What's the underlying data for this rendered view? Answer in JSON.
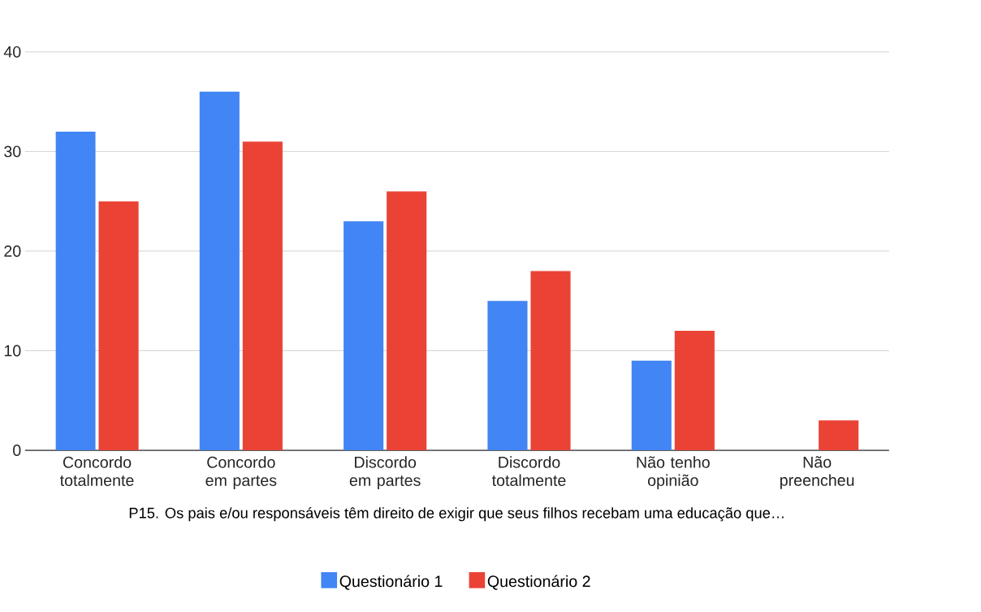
{
  "chart_data": {
    "type": "bar",
    "xlabel": "P15. Os pais e/ou responsáveis têm direito de exigir que seus filhos recebam uma educação que…",
    "categories": [
      "Concordo totalmente",
      "Concordo em partes",
      "Discordo em partes",
      "Discordo totalmente",
      "Não tenho opinião",
      "Não preencheu"
    ],
    "series": [
      {
        "name": "Questionário 1",
        "color": "#4285f4",
        "values": [
          32,
          36,
          23,
          15,
          9,
          0
        ]
      },
      {
        "name": "Questionário 2",
        "color": "#ea4335",
        "values": [
          25,
          31,
          26,
          18,
          12,
          3
        ]
      }
    ],
    "ylim": [
      0,
      40
    ],
    "yticks": [
      0,
      10,
      20,
      30,
      40
    ],
    "grid": "y",
    "legend": "bottom"
  }
}
